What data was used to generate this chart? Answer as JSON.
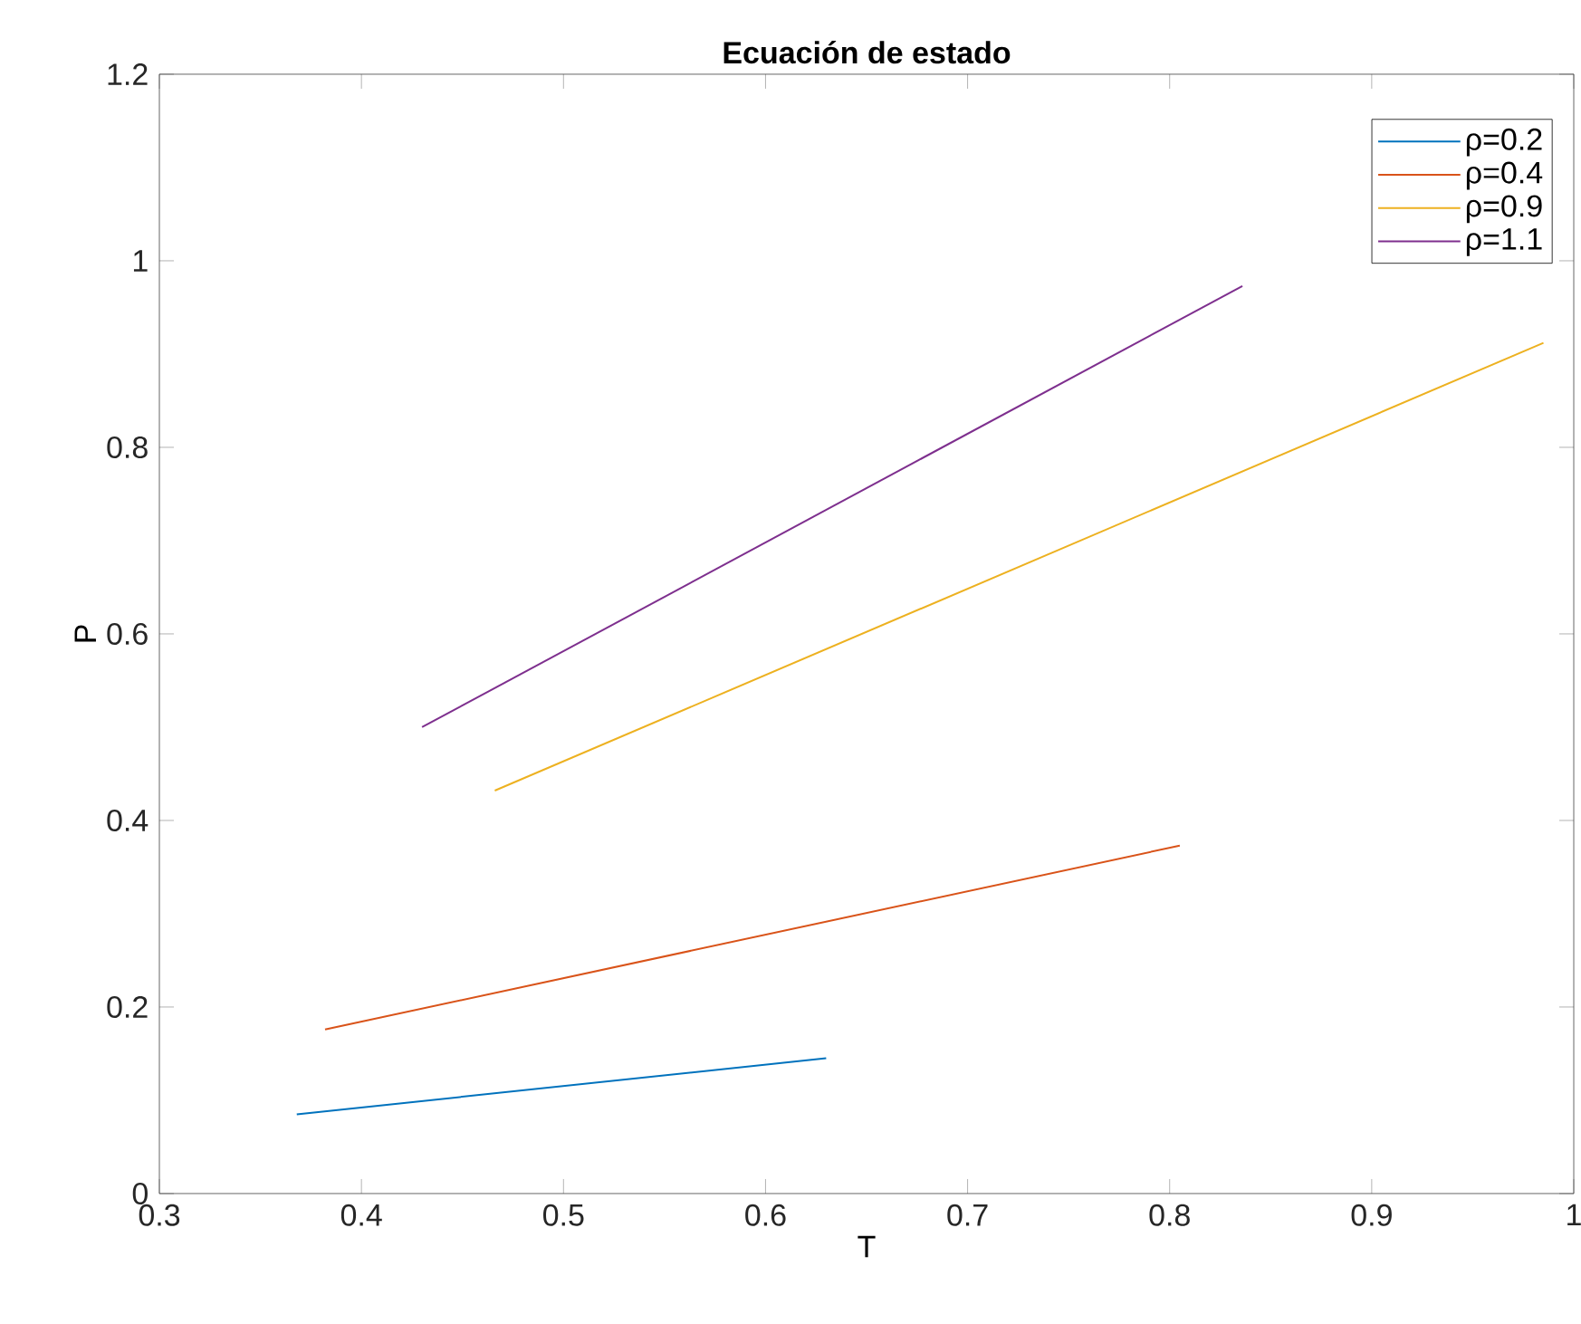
{
  "chart_data": {
    "type": "line",
    "title": "Ecuación de estado",
    "xlabel": "T",
    "ylabel": "P",
    "xlim": [
      0.3,
      1
    ],
    "xticks": [
      0.3,
      0.4,
      0.5,
      0.6,
      0.7,
      0.8,
      0.9,
      1
    ],
    "ylim": [
      0,
      1.2
    ],
    "yticks": [
      0,
      0.2,
      0.4,
      0.6,
      0.8,
      1,
      1.2
    ],
    "legend": "top right",
    "grid": false,
    "marker": "none",
    "line_style": "solid",
    "series": [
      {
        "name": "ρ=0.2",
        "color": "#0072bd",
        "x": [
          0.368,
          0.63
        ],
        "values": [
          0.085,
          0.145
        ]
      },
      {
        "name": "ρ=0.4",
        "color": "#d95319",
        "x": [
          0.382,
          0.805
        ],
        "values": [
          0.176,
          0.373
        ]
      },
      {
        "name": "ρ=0.9",
        "color": "#edb120",
        "x": [
          0.466,
          0.985
        ],
        "values": [
          0.432,
          0.912
        ]
      },
      {
        "name": "ρ=1.1",
        "color": "#7e2f8e",
        "x": [
          0.43,
          0.836
        ],
        "values": [
          0.5,
          0.973
        ]
      }
    ]
  }
}
